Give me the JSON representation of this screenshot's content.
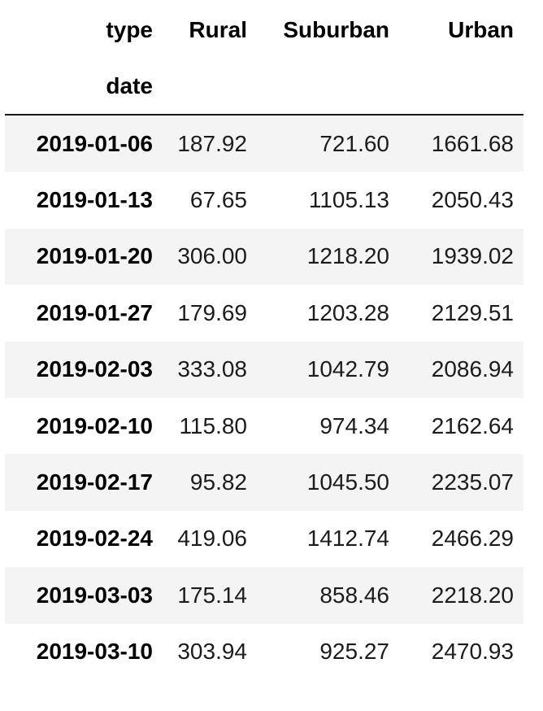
{
  "table": {
    "columns_name": "type",
    "index_name": "date",
    "columns": [
      "Rural",
      "Suburban",
      "Urban"
    ],
    "rows": [
      {
        "date": "2019-01-06",
        "Rural": "187.92",
        "Suburban": "721.60",
        "Urban": "1661.68"
      },
      {
        "date": "2019-01-13",
        "Rural": "67.65",
        "Suburban": "1105.13",
        "Urban": "2050.43"
      },
      {
        "date": "2019-01-20",
        "Rural": "306.00",
        "Suburban": "1218.20",
        "Urban": "1939.02"
      },
      {
        "date": "2019-01-27",
        "Rural": "179.69",
        "Suburban": "1203.28",
        "Urban": "2129.51"
      },
      {
        "date": "2019-02-03",
        "Rural": "333.08",
        "Suburban": "1042.79",
        "Urban": "2086.94"
      },
      {
        "date": "2019-02-10",
        "Rural": "115.80",
        "Suburban": "974.34",
        "Urban": "2162.64"
      },
      {
        "date": "2019-02-17",
        "Rural": "95.82",
        "Suburban": "1045.50",
        "Urban": "2235.07"
      },
      {
        "date": "2019-02-24",
        "Rural": "419.06",
        "Suburban": "1412.74",
        "Urban": "2466.29"
      },
      {
        "date": "2019-03-03",
        "Rural": "175.14",
        "Suburban": "858.46",
        "Urban": "2218.20"
      },
      {
        "date": "2019-03-10",
        "Rural": "303.94",
        "Suburban": "925.27",
        "Urban": "2470.93"
      }
    ]
  }
}
